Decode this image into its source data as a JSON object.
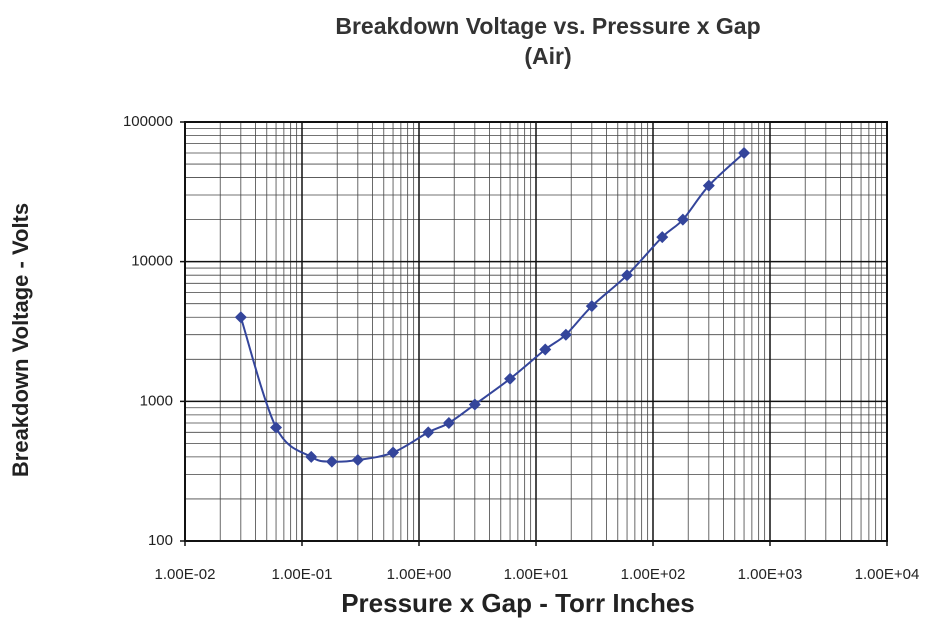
{
  "chart_data": {
    "type": "line",
    "title": [
      "Breakdown Voltage vs. Pressure x Gap",
      "(Air)"
    ],
    "x_label": "Pressure x Gap - Torr Inches",
    "y_label": "Breakdown Voltage - Volts",
    "x": [
      0.03,
      0.06,
      0.12,
      0.18,
      0.3,
      0.6,
      1.2,
      1.8,
      3,
      6,
      12,
      18,
      30,
      60,
      120,
      180,
      300,
      600
    ],
    "series": [
      {
        "color": "#34459b",
        "values": [
          4000,
          650,
          400,
          370,
          380,
          430,
          600,
          700,
          950,
          1450,
          2350,
          3000,
          4800,
          8000,
          15000,
          20000,
          35000,
          60000
        ]
      }
    ],
    "x_log": true,
    "y_log": true,
    "grid": true,
    "minor_grid": true,
    "xlim": [
      0.01,
      10000
    ],
    "ylim": [
      100,
      100000
    ],
    "xticks": [
      {
        "value": 0.01,
        "label": "1.00E-02"
      },
      {
        "value": 0.1,
        "label": "1.00E-01"
      },
      {
        "value": 1,
        "label": "1.00E+00"
      },
      {
        "value": 10,
        "label": "1.00E+01"
      },
      {
        "value": 100,
        "label": "1.00E+02"
      },
      {
        "value": 1000,
        "label": "1.00E+03"
      },
      {
        "value": 10000,
        "label": "1.00E+04"
      }
    ],
    "yticks": [
      100,
      1000,
      10000,
      100000
    ]
  }
}
